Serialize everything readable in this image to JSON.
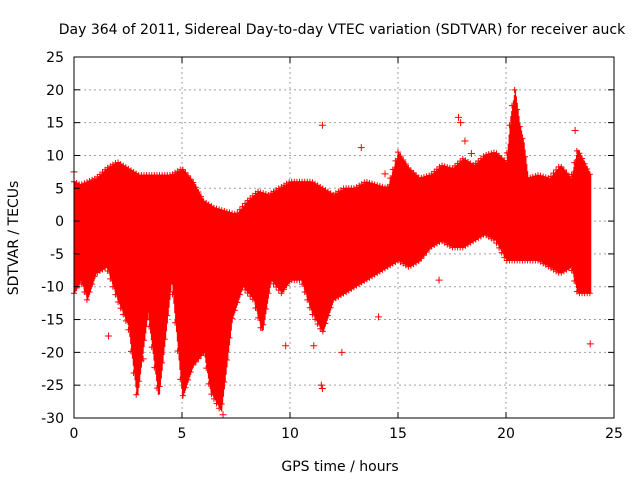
{
  "chart_data": {
    "type": "scatter",
    "title": "Day 364 of 2011, Sidereal Day-to-day VTEC variation (SDTVAR) for receiver auck",
    "xlabel": "GPS time / hours",
    "ylabel": "SDTVAR / TECUs",
    "xlim": [
      0,
      25
    ],
    "ylim": [
      -30,
      25
    ],
    "xticks": [
      "0",
      "5",
      "10",
      "15",
      "20",
      "25"
    ],
    "yticks": [
      "-30",
      "-25",
      "-20",
      "-15",
      "-10",
      "-5",
      "0",
      "5",
      "10",
      "15",
      "20",
      "25"
    ],
    "grid": true,
    "marker": "+",
    "color": "#ff0000",
    "series": [
      {
        "name": "upper_envelope",
        "x": [
          0,
          0.3,
          1,
          1.5,
          2,
          2.5,
          3,
          3.5,
          4,
          4.5,
          5,
          5.5,
          6,
          6.5,
          7,
          7.5,
          8,
          8.5,
          9,
          9.5,
          10,
          10.5,
          11,
          11.5,
          12,
          12.5,
          13,
          13.5,
          14,
          14.5,
          15,
          15.5,
          16,
          16.5,
          17,
          17.5,
          18,
          18.5,
          19,
          19.5,
          20,
          20.2,
          20.4,
          20.6,
          20.8,
          21,
          21.5,
          22,
          22.5,
          23,
          23.3,
          23.6,
          23.9
        ],
        "values": [
          6,
          5.5,
          6.5,
          8,
          9,
          8,
          7,
          7,
          7,
          7,
          8,
          6,
          3,
          2,
          1.5,
          1,
          3,
          4.5,
          4,
          5,
          6,
          6,
          6,
          5,
          4,
          5,
          5,
          6,
          5.5,
          5,
          10.5,
          8,
          6.5,
          7,
          8.5,
          8,
          9.5,
          8.5,
          10,
          10.5,
          9,
          16,
          20,
          15,
          12,
          6.5,
          7,
          6.5,
          8.5,
          6.5,
          11,
          9,
          7
        ]
      },
      {
        "name": "lower_envelope",
        "x": [
          0,
          0.3,
          0.6,
          1,
          1.5,
          2,
          2.5,
          2.9,
          3.4,
          3.9,
          4.5,
          5,
          5.5,
          6,
          6.3,
          6.8,
          7.3,
          7.8,
          8.3,
          8.7,
          9.1,
          9.6,
          10,
          10.5,
          11,
          11.5,
          12,
          12.5,
          13,
          13.5,
          14,
          14.5,
          15,
          15.5,
          16,
          16.5,
          17,
          17.5,
          18,
          18.5,
          19,
          19.5,
          20,
          20.5,
          21,
          21.5,
          22,
          22.5,
          23,
          23.3,
          23.6,
          23.9
        ],
        "values": [
          -11,
          -9,
          -12,
          -8,
          -7,
          -12,
          -16,
          -27,
          -14,
          -27,
          -9,
          -27,
          -22,
          -20,
          -26,
          -29,
          -15,
          -10,
          -12,
          -17,
          -9,
          -11,
          -9,
          -9,
          -14,
          -17,
          -12,
          -11,
          -10,
          -9,
          -8,
          -7,
          -6,
          -7,
          -6,
          -4,
          -3,
          -4,
          -4,
          -3,
          -2,
          -3,
          -6,
          -6,
          -6,
          -6,
          -7,
          -8,
          -7,
          -11,
          -11,
          -11
        ]
      },
      {
        "name": "outliers",
        "x": [
          0,
          11.5,
          17.8,
          17.9,
          18.1,
          18.4,
          23.2,
          23.9,
          13.3,
          14.4,
          14.1,
          11.1,
          11.5,
          11.45,
          12.4,
          3.2,
          6.6,
          6.9,
          1.6,
          9.8,
          16.9
        ],
        "values": [
          7.5,
          14.6,
          15.8,
          15,
          12.2,
          10.3,
          13.8,
          -18.7,
          11.2,
          7.2,
          -14.6,
          -19,
          -25.5,
          -25,
          -20,
          -21,
          -24,
          -29.5,
          -17.5,
          -19,
          -9
        ]
      }
    ]
  }
}
